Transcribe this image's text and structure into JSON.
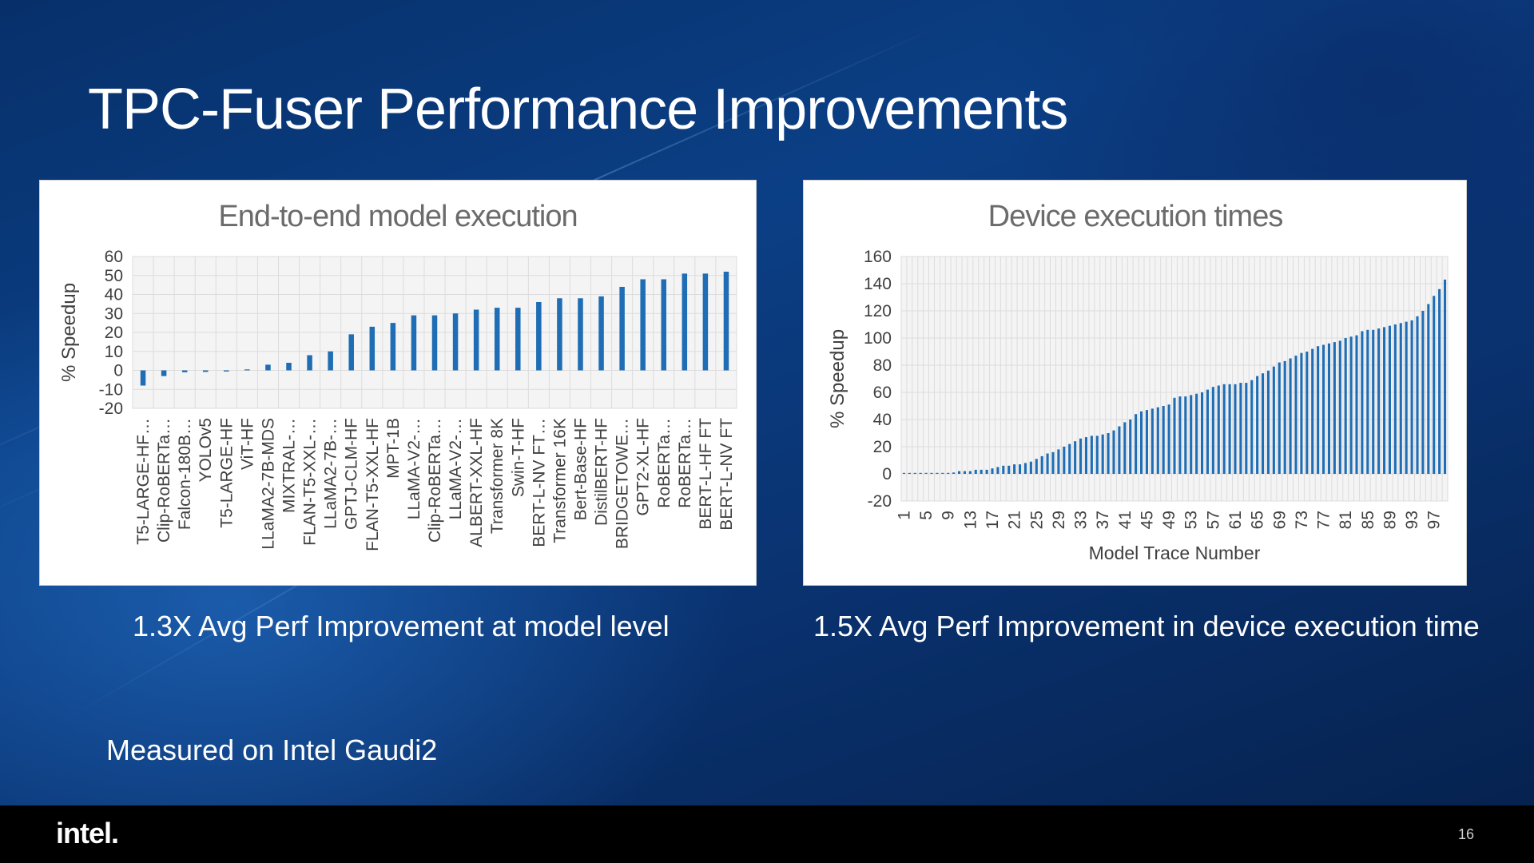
{
  "slide": {
    "title": "TPC-Fuser Performance Improvements",
    "caption_left": "1.3X Avg Perf Improvement at model level",
    "caption_right": "1.5X Avg Perf Improvement in device execution time",
    "note": "Measured on Intel Gaudi2",
    "logo": "intel.",
    "page_number": "16"
  },
  "colors": {
    "bar": "#1f6db5",
    "grid": "#dcdcdc",
    "text": "#404040",
    "title": "#6b6b6b"
  },
  "chart_data": [
    {
      "type": "bar",
      "title": "End-to-end model execution",
      "ylabel": "% Speedup",
      "xlabel": "",
      "ylim": [
        -20,
        60
      ],
      "yticks": [
        60,
        50,
        40,
        30,
        20,
        10,
        0,
        -10,
        -20
      ],
      "grid": true,
      "categories": [
        "T5-LARGE-HF…",
        "Clip-RoBERTa…",
        "Falcon-180B…",
        "YOLOv5",
        "T5-LARGE-HF",
        "ViT-HF",
        "LLaMA2-7B-MDS",
        "MIXTRAL-…",
        "FLAN-T5-XXL-…",
        "LLaMA2-7B-…",
        "GPTJ-CLM-HF",
        "FLAN-T5-XXL-HF",
        "MPT-1B",
        "LLaMA-V2-…",
        "Clip-RoBERTa…",
        "LLaMA-V2-…",
        "ALBERT-XXL-HF",
        "Transformer 8K",
        "Swin-T-HF",
        "BERT-L-NV FT…",
        "Transformer 16K",
        "Bert-Base-HF",
        "DistilBERT-HF",
        "BRIDGETOWE…",
        "GPT2-XL-HF",
        "RoBERTa…",
        "RoBERTa…",
        "BERT-L-HF FT",
        "BERT-L-NV FT"
      ],
      "values": [
        -8,
        -3,
        -1,
        -0.8,
        -0.6,
        0,
        3,
        4,
        8,
        10,
        19,
        23,
        25,
        29,
        29,
        30,
        32,
        33,
        33,
        36,
        38,
        38,
        39,
        44,
        48,
        48,
        51,
        51,
        52
      ]
    },
    {
      "type": "bar",
      "title": "Device execution times",
      "ylabel": "% Speedup",
      "xlabel": "Model Trace Number",
      "ylim": [
        -20,
        160
      ],
      "yticks": [
        160,
        140,
        120,
        100,
        80,
        60,
        40,
        20,
        0,
        -20
      ],
      "grid": true,
      "x_tick_labels": [
        "1",
        "5",
        "9",
        "13",
        "17",
        "21",
        "25",
        "29",
        "33",
        "37",
        "41",
        "45",
        "49",
        "53",
        "57",
        "61",
        "65",
        "69",
        "73",
        "77",
        "81",
        "85",
        "89",
        "93",
        "97"
      ],
      "x": [
        1,
        2,
        3,
        4,
        5,
        6,
        7,
        8,
        9,
        10,
        11,
        12,
        13,
        14,
        15,
        16,
        17,
        18,
        19,
        20,
        21,
        22,
        23,
        24,
        25,
        26,
        27,
        28,
        29,
        30,
        31,
        32,
        33,
        34,
        35,
        36,
        37,
        38,
        39,
        40,
        41,
        42,
        43,
        44,
        45,
        46,
        47,
        48,
        49,
        50,
        51,
        52,
        53,
        54,
        55,
        56,
        57,
        58,
        59,
        60,
        61,
        62,
        63,
        64,
        65,
        66,
        67,
        68,
        69,
        70,
        71,
        72,
        73,
        74,
        75,
        76,
        77,
        78,
        79,
        80,
        81,
        82,
        83,
        84,
        85,
        86,
        87,
        88,
        89,
        90,
        91,
        92,
        93,
        94,
        95,
        96,
        97,
        98,
        99
      ],
      "values": [
        0,
        0,
        0,
        0,
        0,
        0,
        0,
        0,
        0,
        1,
        2,
        2,
        2,
        3,
        3,
        3,
        4,
        5,
        6,
        6,
        7,
        7,
        8,
        9,
        11,
        13,
        15,
        16,
        18,
        20,
        22,
        24,
        26,
        27,
        28,
        28,
        29,
        30,
        32,
        35,
        38,
        40,
        44,
        46,
        47,
        48,
        49,
        50,
        51,
        56,
        57,
        57,
        58,
        59,
        60,
        62,
        64,
        65,
        66,
        66,
        66,
        67,
        67,
        69,
        72,
        74,
        76,
        79,
        82,
        83,
        85,
        87,
        89,
        90,
        92,
        94,
        95,
        96,
        97,
        98,
        100,
        101,
        102,
        105,
        106,
        106,
        107,
        108,
        109,
        110,
        111,
        112,
        113,
        116,
        120,
        125,
        131,
        136,
        143
      ]
    }
  ]
}
